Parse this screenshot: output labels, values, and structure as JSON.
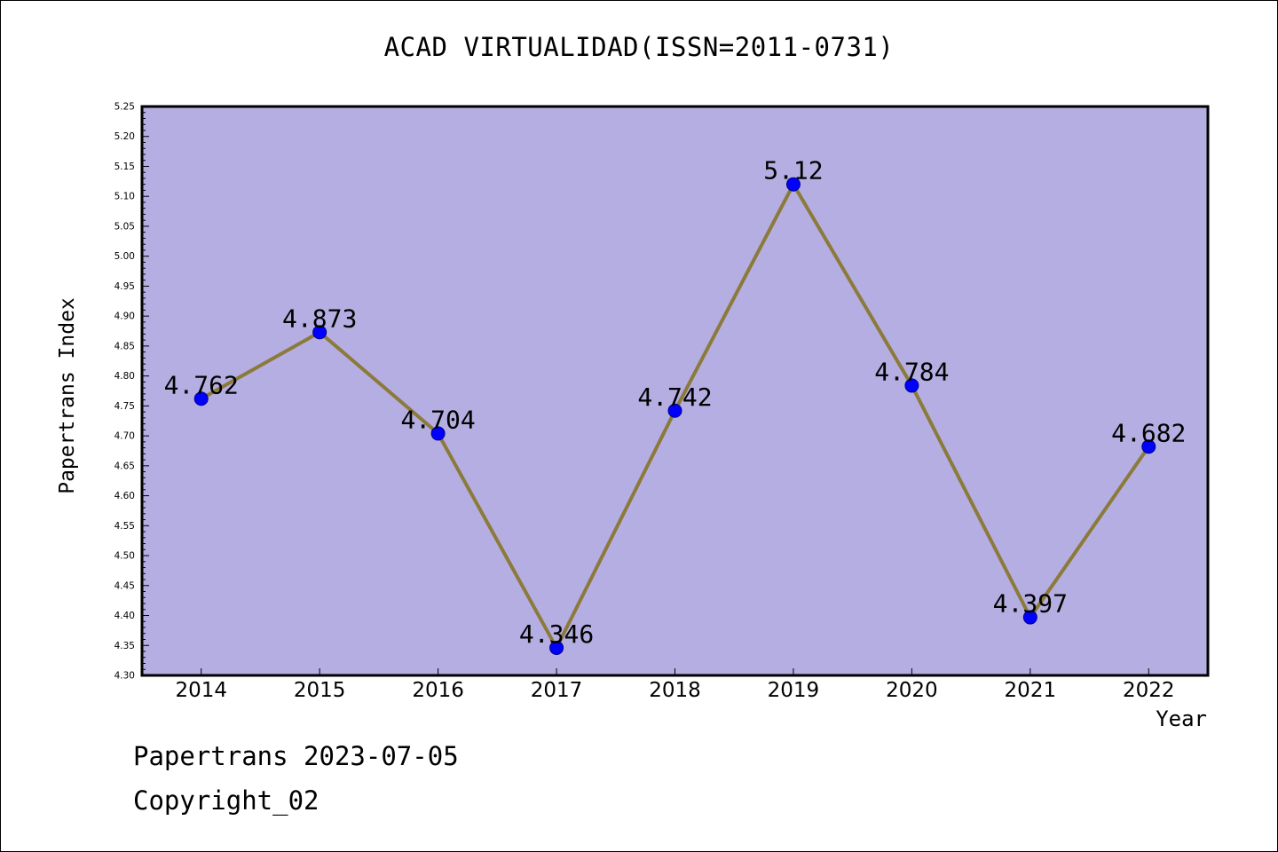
{
  "chart_data": {
    "type": "line",
    "title": "ACAD VIRTUALIDAD(ISSN=2011-0731)",
    "xlabel": "Year",
    "ylabel": "Papertrans Index",
    "x": [
      "2014",
      "2015",
      "2016",
      "2017",
      "2018",
      "2019",
      "2020",
      "2021",
      "2022"
    ],
    "values": [
      4.762,
      4.873,
      4.704,
      4.346,
      4.742,
      5.12,
      4.784,
      4.397,
      4.682
    ],
    "data_labels": [
      "4.762",
      "4.873",
      "4.704",
      "4.346",
      "4.742",
      "5.12",
      "4.784",
      "4.397",
      "4.682"
    ],
    "ylim": [
      4.3,
      5.25
    ],
    "yticks": [
      "4.30",
      "4.35",
      "4.40",
      "4.45",
      "4.50",
      "4.55",
      "4.60",
      "4.65",
      "4.70",
      "4.75",
      "4.80",
      "4.85",
      "4.90",
      "4.95",
      "5.00",
      "5.05",
      "5.10",
      "5.15",
      "5.20",
      "5.25"
    ],
    "grid": false,
    "legend": "none",
    "colors": {
      "plot_background": "#b5aee2",
      "line": "#8b7a3a",
      "marker": "#0000ff",
      "marker_edge": "#00008b"
    }
  },
  "footer": {
    "line1": "Papertrans 2023-07-05",
    "line2": "Copyright_02"
  }
}
